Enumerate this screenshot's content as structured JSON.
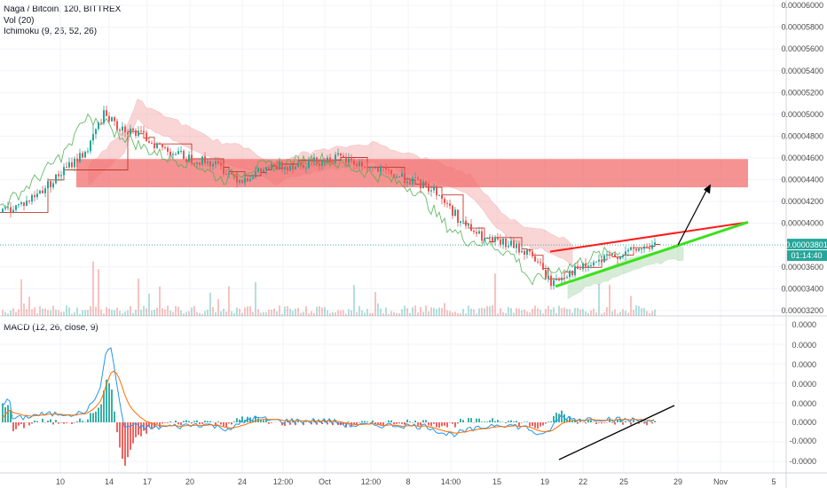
{
  "header": {
    "title": "Naga / Bitcoin, 120, BITTREX",
    "vol_label": "Vol (20)",
    "ichimoku_label": "Ichimoku (9, 26, 52, 26)",
    "macd_label": "MACD (12, 26, close, 9)"
  },
  "colors": {
    "up": "#26a69a",
    "down": "#ef5350",
    "kijun": "#c0392b",
    "chikou": "#4caf50",
    "cloud_bear": "#f4a3a3",
    "cloud_bull": "#a5d6a7",
    "zone": "#f26d6d",
    "macd_line": "#2196f3",
    "signal_line": "#ff6d00",
    "trend_red": "#ff1a1a",
    "trend_green": "#3ce01c",
    "last_price": "#26a69a"
  },
  "price_axis": {
    "ticks": [
      "0.00006000",
      "0.00005800",
      "0.00005600",
      "0.00005400",
      "0.00005200",
      "0.00005000",
      "0.00004800",
      "0.00004600",
      "0.00004400",
      "0.00004200",
      "0.00004000",
      "0.00003600",
      "0.00003400",
      "0.00003200"
    ],
    "last_price": "0.00003801",
    "countdown": "01:14:40"
  },
  "macd_axis": {
    "ticks": [
      "0.0000",
      "0.0000",
      "0.0000",
      "0.0000",
      "0.0000",
      "0.0000",
      "-0.0000",
      "-0.0000"
    ]
  },
  "time_axis": {
    "labels": [
      "10",
      "14",
      "17",
      "20",
      "24",
      "12:00",
      "Oct",
      "12:00",
      "8",
      "14:00",
      "15",
      "19",
      "22",
      "25",
      "29",
      "Nov",
      "5"
    ]
  },
  "chart_data": {
    "type": "candlestick",
    "title": "Naga / Bitcoin, 120, BITTREX",
    "ylim": [
      3.15e-05,
      6.05e-05
    ],
    "price_series": [
      {
        "t": "10",
        "v": 4.1e-05
      },
      {
        "t": "12",
        "v": 4.4e-05
      },
      {
        "t": "13",
        "v": 5.2e-05
      },
      {
        "t": "14",
        "v": 5e-05
      },
      {
        "t": "16",
        "v": 4.8e-05
      },
      {
        "t": "17",
        "v": 4.7e-05
      },
      {
        "t": "20",
        "v": 4.6e-05
      },
      {
        "t": "22",
        "v": 4.5e-05
      },
      {
        "t": "24",
        "v": 4.4e-05
      },
      {
        "t": "27",
        "v": 4.45e-05
      },
      {
        "t": "Oct",
        "v": 4.6e-05
      },
      {
        "t": "5",
        "v": 4.55e-05
      },
      {
        "t": "8",
        "v": 4.5e-05
      },
      {
        "t": "11",
        "v": 4.3e-05
      },
      {
        "t": "14",
        "v": 4e-05
      },
      {
        "t": "15",
        "v": 3.9e-05
      },
      {
        "t": "17",
        "v": 3.7e-05
      },
      {
        "t": "19",
        "v": 3.45e-05
      },
      {
        "t": "21",
        "v": 3.6e-05
      },
      {
        "t": "22",
        "v": 3.65e-05
      },
      {
        "t": "24",
        "v": 3.75e-05
      },
      {
        "t": "25",
        "v": 3.8e-05
      },
      {
        "t": "26",
        "v": 3.8e-05
      }
    ],
    "resistance_zone": [
      4.33e-05,
      4.59e-05
    ],
    "last_price": 3.801e-05,
    "macd_range": [
      -1e-05,
      1e-05
    ]
  }
}
